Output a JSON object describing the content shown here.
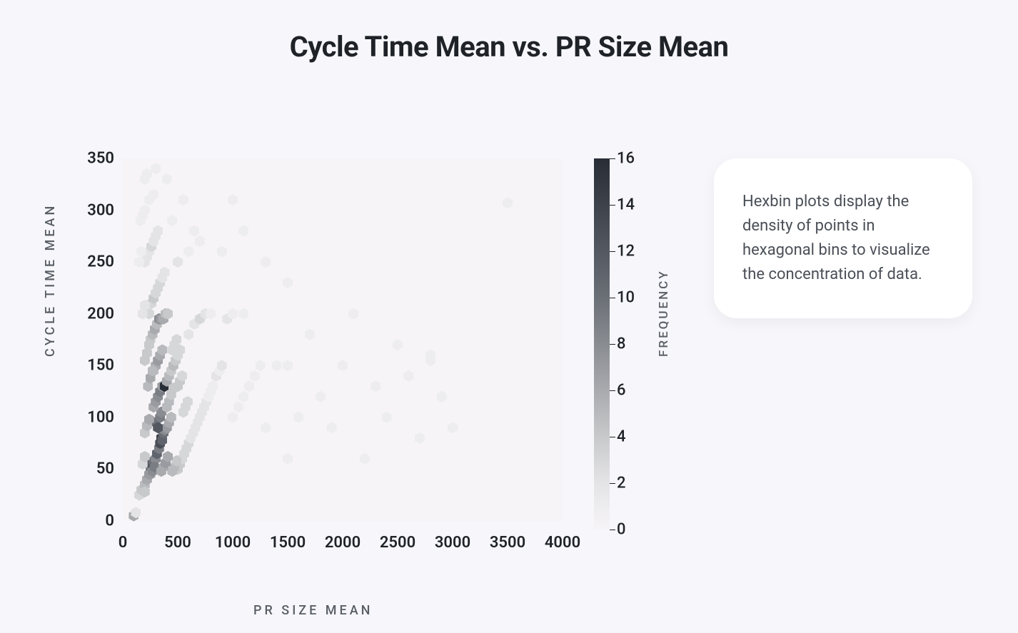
{
  "title": "Cycle Time Mean vs. PR Size Mean",
  "chart": {
    "type": "hexbin",
    "xlabel": "PR SIZE MEAN",
    "ylabel": "CYCLE TIME MEAN",
    "colorbar_label": "FREQUENCY",
    "xlim": [
      0,
      4000
    ],
    "ylim": [
      0,
      350
    ],
    "x_ticks": [
      0,
      500,
      1000,
      1500,
      2000,
      2500,
      3000,
      3500,
      4000
    ],
    "y_ticks": [
      0,
      50,
      100,
      150,
      200,
      250,
      300,
      350
    ],
    "colorbar_ticks": [
      0,
      2,
      4,
      6,
      8,
      10,
      12,
      14,
      16
    ],
    "plot_bg": "#f6f4f7",
    "page_bg": "#f7f7fb",
    "tick_fontsize": 22,
    "tick_fontweight": 600,
    "label_fontsize": 18,
    "label_letterspacing": 4,
    "label_color": "#5a5f66",
    "title_fontsize": 40,
    "title_fontweight": 700,
    "title_color": "#1f2328",
    "hex_size": 14,
    "colorbar_gradient": [
      "#f6f4f7",
      "#e4e4e6",
      "#c8c9cb",
      "#a9aaae",
      "#898c91",
      "#6b6f76",
      "#545861",
      "#3d424b",
      "#292d35"
    ],
    "bins": [
      [
        100,
        5,
        6
      ],
      [
        120,
        8,
        2
      ],
      [
        150,
        25,
        3
      ],
      [
        170,
        30,
        4
      ],
      [
        200,
        35,
        5
      ],
      [
        200,
        28,
        4
      ],
      [
        220,
        40,
        6
      ],
      [
        240,
        45,
        7
      ],
      [
        250,
        50,
        9
      ],
      [
        260,
        55,
        12
      ],
      [
        280,
        58,
        10
      ],
      [
        300,
        60,
        8
      ],
      [
        310,
        65,
        11
      ],
      [
        330,
        70,
        9
      ],
      [
        340,
        75,
        13
      ],
      [
        350,
        80,
        14
      ],
      [
        360,
        78,
        11
      ],
      [
        370,
        85,
        10
      ],
      [
        380,
        88,
        8
      ],
      [
        400,
        90,
        7
      ],
      [
        420,
        95,
        6
      ],
      [
        440,
        100,
        5
      ],
      [
        300,
        95,
        10
      ],
      [
        320,
        90,
        12
      ],
      [
        340,
        100,
        9
      ],
      [
        350,
        105,
        8
      ],
      [
        280,
        110,
        6
      ],
      [
        300,
        115,
        7
      ],
      [
        320,
        120,
        8
      ],
      [
        340,
        125,
        9
      ],
      [
        360,
        130,
        7
      ],
      [
        380,
        130,
        16
      ],
      [
        400,
        135,
        6
      ],
      [
        420,
        140,
        5
      ],
      [
        440,
        145,
        4
      ],
      [
        460,
        150,
        5
      ],
      [
        480,
        155,
        4
      ],
      [
        500,
        160,
        3
      ],
      [
        520,
        165,
        3
      ],
      [
        280,
        145,
        5
      ],
      [
        300,
        150,
        6
      ],
      [
        320,
        155,
        7
      ],
      [
        340,
        160,
        6
      ],
      [
        360,
        165,
        5
      ],
      [
        250,
        175,
        4
      ],
      [
        270,
        180,
        5
      ],
      [
        290,
        185,
        6
      ],
      [
        310,
        190,
        5
      ],
      [
        330,
        195,
        8
      ],
      [
        350,
        195,
        7
      ],
      [
        370,
        195,
        6
      ],
      [
        390,
        200,
        5
      ],
      [
        410,
        200,
        4
      ],
      [
        250,
        45,
        7
      ],
      [
        270,
        48,
        8
      ],
      [
        290,
        52,
        9
      ],
      [
        240,
        200,
        3
      ],
      [
        260,
        210,
        3
      ],
      [
        280,
        215,
        4
      ],
      [
        300,
        220,
        3
      ],
      [
        320,
        225,
        3
      ],
      [
        340,
        230,
        3
      ],
      [
        360,
        235,
        2
      ],
      [
        380,
        240,
        2
      ],
      [
        200,
        250,
        2
      ],
      [
        220,
        255,
        2
      ],
      [
        240,
        260,
        2
      ],
      [
        260,
        265,
        3
      ],
      [
        280,
        270,
        2
      ],
      [
        300,
        275,
        2
      ],
      [
        320,
        280,
        2
      ],
      [
        160,
        290,
        1
      ],
      [
        180,
        295,
        1
      ],
      [
        200,
        300,
        1
      ],
      [
        240,
        310,
        1
      ],
      [
        280,
        315,
        1
      ],
      [
        200,
        330,
        1
      ],
      [
        220,
        335,
        1
      ],
      [
        300,
        340,
        1
      ],
      [
        500,
        50,
        4
      ],
      [
        520,
        55,
        4
      ],
      [
        540,
        60,
        3
      ],
      [
        560,
        65,
        3
      ],
      [
        580,
        70,
        3
      ],
      [
        600,
        75,
        3
      ],
      [
        620,
        80,
        2
      ],
      [
        640,
        85,
        2
      ],
      [
        660,
        90,
        2
      ],
      [
        680,
        95,
        2
      ],
      [
        700,
        100,
        2
      ],
      [
        720,
        105,
        2
      ],
      [
        740,
        110,
        2
      ],
      [
        760,
        115,
        2
      ],
      [
        780,
        120,
        1
      ],
      [
        800,
        125,
        1
      ],
      [
        820,
        130,
        1
      ],
      [
        850,
        140,
        2
      ],
      [
        880,
        145,
        1
      ],
      [
        900,
        150,
        2
      ],
      [
        600,
        180,
        2
      ],
      [
        650,
        190,
        2
      ],
      [
        700,
        195,
        3
      ],
      [
        750,
        200,
        2
      ],
      [
        800,
        200,
        1
      ],
      [
        550,
        105,
        3
      ],
      [
        570,
        110,
        3
      ],
      [
        590,
        115,
        3
      ],
      [
        500,
        130,
        4
      ],
      [
        520,
        135,
        4
      ],
      [
        540,
        140,
        3
      ],
      [
        450,
        165,
        3
      ],
      [
        470,
        170,
        3
      ],
      [
        490,
        175,
        3
      ],
      [
        1000,
        100,
        1
      ],
      [
        1050,
        110,
        1
      ],
      [
        1100,
        120,
        1
      ],
      [
        1150,
        130,
        1
      ],
      [
        1200,
        140,
        1
      ],
      [
        1250,
        150,
        1
      ],
      [
        950,
        195,
        2
      ],
      [
        1000,
        200,
        1
      ],
      [
        1100,
        200,
        1
      ],
      [
        1300,
        90,
        1
      ],
      [
        1400,
        150,
        1
      ],
      [
        1500,
        60,
        1
      ],
      [
        1500,
        150,
        1
      ],
      [
        1600,
        100,
        1
      ],
      [
        1700,
        180,
        1
      ],
      [
        1800,
        120,
        1
      ],
      [
        1900,
        90,
        1
      ],
      [
        2000,
        150,
        1
      ],
      [
        2100,
        200,
        1
      ],
      [
        2200,
        60,
        1
      ],
      [
        2300,
        130,
        1
      ],
      [
        2400,
        100,
        1
      ],
      [
        2500,
        170,
        1
      ],
      [
        2600,
        140,
        1
      ],
      [
        2700,
        80,
        1
      ],
      [
        2800,
        155,
        1
      ],
      [
        2800,
        160,
        1
      ],
      [
        2900,
        120,
        1
      ],
      [
        3000,
        90,
        1
      ],
      [
        3500,
        307,
        1
      ],
      [
        500,
        250,
        2
      ],
      [
        600,
        260,
        1
      ],
      [
        700,
        270,
        1
      ],
      [
        450,
        290,
        1
      ],
      [
        550,
        310,
        1
      ],
      [
        650,
        280,
        1
      ],
      [
        400,
        330,
        1
      ],
      [
        900,
        260,
        1
      ],
      [
        1100,
        280,
        1
      ],
      [
        1300,
        250,
        1
      ],
      [
        1500,
        230,
        1
      ],
      [
        1000,
        310,
        1
      ],
      [
        180,
        55,
        3
      ],
      [
        200,
        62,
        4
      ],
      [
        450,
        48,
        5
      ],
      [
        470,
        52,
        5
      ],
      [
        490,
        58,
        4
      ],
      [
        200,
        85,
        4
      ],
      [
        220,
        92,
        5
      ],
      [
        240,
        98,
        6
      ],
      [
        400,
        110,
        5
      ],
      [
        420,
        115,
        5
      ],
      [
        440,
        122,
        4
      ],
      [
        460,
        128,
        4
      ],
      [
        350,
        48,
        6
      ],
      [
        370,
        52,
        6
      ],
      [
        390,
        56,
        7
      ],
      [
        410,
        62,
        6
      ],
      [
        230,
        130,
        5
      ],
      [
        250,
        138,
        6
      ],
      [
        270,
        145,
        5
      ],
      [
        200,
        155,
        4
      ],
      [
        220,
        162,
        4
      ],
      [
        240,
        170,
        4
      ],
      [
        180,
        200,
        2
      ],
      [
        200,
        208,
        2
      ],
      [
        150,
        250,
        1
      ],
      [
        170,
        260,
        1
      ]
    ]
  },
  "info_card": {
    "text": "Hexbin plots display the density of points in hexagonal bins to visualize the concentration of data.",
    "bg": "#ffffff",
    "text_color": "#4a4f57",
    "radius": 32,
    "fontsize": 22
  }
}
